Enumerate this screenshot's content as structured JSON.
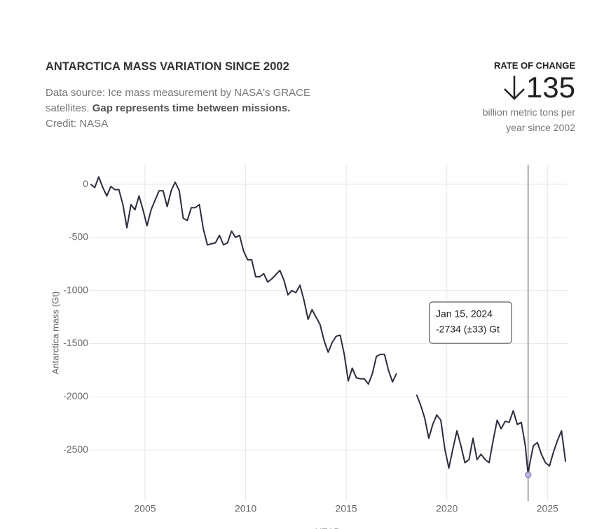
{
  "chart_data": {
    "type": "line",
    "title": "ANTARCTICA MASS VARIATION SINCE 2002",
    "subtitle": [
      "Data source: Ice mass measurement by NASA's GRACE satellites.",
      "Gap represents time between missions."
    ],
    "credit": "Credit: NASA",
    "rate": {
      "label": "RATE OF CHANGE",
      "value": 135,
      "unit": "billion metric tons per year since 2002"
    },
    "xlabel": "YEAR",
    "ylabel": "Antarctica mass (Gt)",
    "x": [
      2002.3,
      2002.5,
      2002.7,
      2002.9,
      2003.1,
      2003.3,
      2003.5,
      2003.7,
      2003.9,
      2004.1,
      2004.3,
      2004.5,
      2004.7,
      2004.9,
      2005.1,
      2005.3,
      2005.5,
      2005.7,
      2005.9,
      2006.1,
      2006.3,
      2006.5,
      2006.7,
      2006.9,
      2007.1,
      2007.3,
      2007.5,
      2007.7,
      2007.9,
      2008.1,
      2008.3,
      2008.5,
      2008.7,
      2008.9,
      2009.1,
      2009.3,
      2009.5,
      2009.7,
      2009.9,
      2010.1,
      2010.3,
      2010.5,
      2010.7,
      2010.9,
      2011.1,
      2011.3,
      2011.5,
      2011.7,
      2011.9,
      2012.1,
      2012.3,
      2012.5,
      2012.7,
      2012.9,
      2013.1,
      2013.3,
      2013.5,
      2013.7,
      2013.9,
      2014.1,
      2014.3,
      2014.5,
      2014.7,
      2014.9,
      2015.1,
      2015.3,
      2015.5,
      2015.7,
      2015.9,
      2016.1,
      2016.3,
      2016.5,
      2016.7,
      2016.9,
      2017.1,
      2017.3,
      2017.5,
      2018.0,
      2018.5,
      2018.7,
      2018.9,
      2019.1,
      2019.3,
      2019.5,
      2019.7,
      2019.9,
      2020.1,
      2020.3,
      2020.5,
      2020.7,
      2020.9,
      2021.1,
      2021.3,
      2021.5,
      2021.7,
      2021.9,
      2022.1,
      2022.3,
      2022.5,
      2022.7,
      2022.9,
      2023.1,
      2023.3,
      2023.5,
      2023.7,
      2023.9,
      2024.04,
      2024.1,
      2024.3,
      2024.5,
      2024.7,
      2024.9,
      2025.1,
      2025.3,
      2025.5,
      2025.7,
      2025.9
    ],
    "series": [
      {
        "name": "Antarctica mass",
        "color": "#2e2c3e",
        "values": [
          0,
          -30,
          70,
          -30,
          -110,
          -20,
          -50,
          -50,
          -190,
          -410,
          -190,
          -240,
          -110,
          -240,
          -390,
          -240,
          -150,
          -60,
          -60,
          -210,
          -60,
          20,
          -60,
          -320,
          -340,
          -220,
          -220,
          -190,
          -420,
          -570,
          -560,
          -550,
          -480,
          -570,
          -550,
          -440,
          -500,
          -480,
          -630,
          -710,
          -710,
          -870,
          -870,
          -840,
          -920,
          -890,
          -850,
          -810,
          -900,
          -1040,
          -1000,
          -1020,
          -950,
          -1090,
          -1270,
          -1180,
          -1250,
          -1320,
          -1470,
          -1580,
          -1490,
          -1430,
          -1420,
          -1600,
          -1850,
          -1730,
          -1820,
          -1830,
          -1830,
          -1880,
          -1780,
          -1620,
          -1600,
          -1600,
          -1750,
          -1860,
          -1780,
          null,
          -1980,
          -2080,
          -2200,
          -2390,
          -2260,
          -2170,
          -2220,
          -2490,
          -2670,
          -2490,
          -2320,
          -2460,
          -2620,
          -2590,
          -2390,
          -2590,
          -2540,
          -2590,
          -2620,
          -2410,
          -2220,
          -2300,
          -2230,
          -2240,
          -2130,
          -2260,
          -2240,
          -2460,
          -2734,
          -2650,
          -2460,
          -2430,
          -2540,
          -2620,
          -2650,
          -2520,
          -2410,
          -2320,
          -2610
        ]
      }
    ],
    "xlim": [
      2002.25,
      2026
    ],
    "ylim": [
      -2980,
      185
    ],
    "xticks": [
      2005,
      2010,
      2015,
      2020,
      2025
    ],
    "yticks": [
      0,
      -500,
      -1000,
      -1500,
      -2000,
      -2500
    ],
    "grid": true,
    "tooltip": {
      "x": 2024.04,
      "date": "Jan 15, 2024",
      "value": -2734,
      "error": 33,
      "label": "-2734 (±33) Gt"
    }
  }
}
